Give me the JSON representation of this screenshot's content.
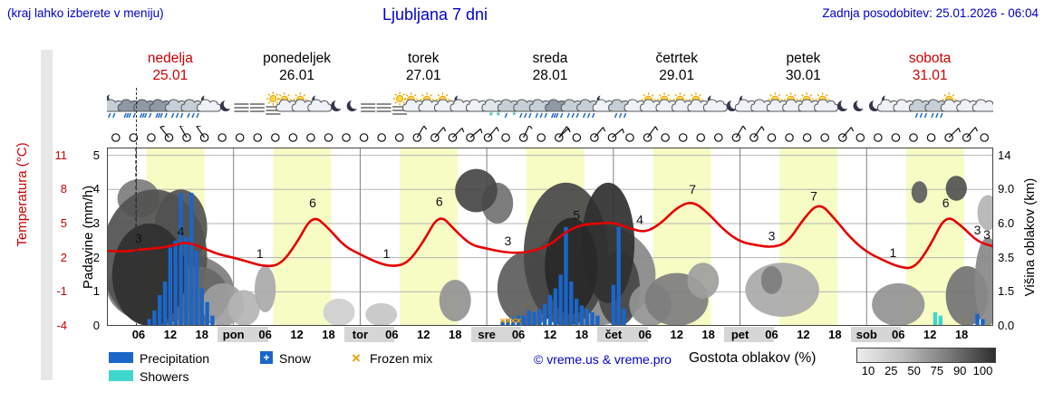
{
  "header": {
    "hint": "(kraj lahko izberete v meniju)",
    "title": "Ljubljana 7 dni",
    "updated": "Zadnja posodobitev: 25.01.2026 - 06:04"
  },
  "days": [
    {
      "name": "nedelja",
      "date": "25.01",
      "weekend": true
    },
    {
      "name": "ponedeljek",
      "date": "26.01",
      "weekend": false
    },
    {
      "name": "torek",
      "date": "27.01",
      "weekend": false
    },
    {
      "name": "sreda",
      "date": "28.01",
      "weekend": false
    },
    {
      "name": "četrtek",
      "date": "29.01",
      "weekend": false
    },
    {
      "name": "petek",
      "date": "30.01",
      "weekend": false
    },
    {
      "name": "sobota",
      "date": "31.01",
      "weekend": true
    }
  ],
  "axes": {
    "temp_label": "Temperatura (°C)",
    "temp_ticks": [
      "11",
      "8",
      "5",
      "2",
      "-1",
      "-4"
    ],
    "precip_label": "Padavine (mm/h)",
    "precip_ticks": [
      "5",
      "4",
      "3",
      "2",
      "1",
      "0"
    ],
    "cloud_label": "Višina oblakov (km)",
    "cloud_ticks": [
      "14",
      "9.0",
      "6.0",
      "3.5",
      "1.5",
      "0.0"
    ]
  },
  "legend": {
    "precipitation": "Precipitation",
    "snow": "Snow",
    "frozen_mix": "Frozen mix",
    "showers": "Showers",
    "copyright": "© vreme.us & vreme.pro",
    "cloud_density": "Gostota oblakov (%)",
    "cloud_scale": [
      "10",
      "25",
      "50",
      "75",
      "90",
      "100"
    ]
  },
  "colors": {
    "accent_blue": "#0000cc",
    "accent_red": "#cc0000",
    "temp_curve": "#e60000",
    "precip_bar": "#1a66c9",
    "showers_bar": "#3fd6ce",
    "frozen_mix": "#f0a000",
    "day_band": "#f7fcc4"
  },
  "chart_data": {
    "type": "meteogram",
    "hours": 168,
    "now_line_hour": 5.5,
    "daylight": [
      7.5,
      18.5
    ],
    "temperature": {
      "unit": "°C",
      "step_hours": 3,
      "values": [
        2.6,
        2.5,
        2.7,
        2.8,
        3.0,
        3.4,
        2.9,
        2.3,
        2.0,
        1.6,
        1.2,
        1.4,
        3.3,
        5.8,
        4.6,
        3.0,
        2.3,
        1.6,
        1.2,
        1.5,
        3.4,
        5.9,
        4.4,
        3.1,
        2.8,
        2.5,
        2.4,
        2.6,
        3.1,
        4.3,
        4.9,
        5.0,
        5.1,
        4.6,
        4.2,
        5.0,
        6.4,
        7.0,
        5.9,
        4.4,
        3.4,
        3.1,
        2.9,
        3.3,
        5.4,
        6.9,
        5.4,
        3.7,
        2.5,
        1.8,
        1.2,
        1.0,
        3.0,
        5.8,
        4.8,
        3.4,
        3.0
      ],
      "point_labels": [
        [
          6,
          3
        ],
        [
          14,
          4
        ],
        [
          29,
          1
        ],
        [
          39,
          6
        ],
        [
          53,
          1
        ],
        [
          63,
          6
        ],
        [
          76,
          3
        ],
        [
          89,
          5
        ],
        [
          101,
          4
        ],
        [
          111,
          7
        ],
        [
          126,
          3
        ],
        [
          134,
          7
        ],
        [
          149,
          1
        ],
        [
          159,
          6
        ],
        [
          165,
          3
        ],
        [
          168,
          3
        ]
      ]
    },
    "precipitation": {
      "unit": "mm/h",
      "bars": [
        [
          8,
          0.2
        ],
        [
          9,
          0.45
        ],
        [
          10,
          0.9
        ],
        [
          11,
          1.3
        ],
        [
          12,
          2.3
        ],
        [
          13,
          2.5
        ],
        [
          14,
          3.9
        ],
        [
          15,
          2.6
        ],
        [
          16,
          3.9
        ],
        [
          17,
          2.2
        ],
        [
          18,
          1.1
        ],
        [
          19,
          0.7
        ],
        [
          20,
          0.3
        ],
        [
          75,
          0.15
        ],
        [
          76,
          0.2
        ],
        [
          77,
          0.25
        ],
        [
          78,
          0.3
        ],
        [
          79,
          0.3
        ],
        [
          80,
          0.45
        ],
        [
          81,
          0.4
        ],
        [
          82,
          0.5
        ],
        [
          83,
          0.65
        ],
        [
          84,
          0.9
        ],
        [
          85,
          1.1
        ],
        [
          86,
          1.5
        ],
        [
          87,
          2.9
        ],
        [
          88,
          1.3
        ],
        [
          89,
          0.8
        ],
        [
          90,
          0.6
        ],
        [
          91,
          0.5
        ],
        [
          92,
          0.4
        ],
        [
          93,
          0.3
        ],
        [
          96,
          1.2
        ],
        [
          97,
          2.9
        ],
        [
          98,
          0.5
        ],
        [
          165,
          0.35
        ],
        [
          166,
          0.2
        ]
      ],
      "shower_bars": [
        [
          157,
          0.4
        ],
        [
          158,
          0.3
        ]
      ]
    },
    "frozen_mix_hours": [
      75,
      76,
      77,
      78
    ],
    "clouds": {
      "unit": "km",
      "scale_km": [
        0,
        1.5,
        3.5,
        6,
        9,
        14
      ],
      "blobs": [
        [
          12,
          2,
          12,
          2,
          55
        ],
        [
          6,
          8.5,
          4,
          2,
          55
        ],
        [
          9,
          4.5,
          10,
          4.5,
          75
        ],
        [
          14,
          6,
          5,
          3,
          75
        ],
        [
          17,
          1.5,
          6,
          1.5,
          65
        ],
        [
          8,
          3,
          7,
          3,
          90
        ],
        [
          22,
          1,
          4,
          1,
          40
        ],
        [
          26,
          0.8,
          3,
          0.8,
          30
        ],
        [
          30,
          1.8,
          2,
          1.2,
          35
        ],
        [
          44,
          0.6,
          3,
          0.6,
          18
        ],
        [
          52,
          0.5,
          3,
          0.5,
          22
        ],
        [
          66,
          1.2,
          3,
          1,
          45
        ],
        [
          74,
          8,
          3,
          2,
          60
        ],
        [
          70,
          9.5,
          4,
          2.5,
          80
        ],
        [
          92,
          3,
          12,
          3,
          50
        ],
        [
          80,
          2,
          6,
          2,
          70
        ],
        [
          87,
          5,
          8,
          5,
          80
        ],
        [
          97,
          2,
          4,
          2,
          80
        ],
        [
          95,
          5.5,
          5,
          4.5,
          90
        ],
        [
          88,
          3.5,
          5,
          3,
          95
        ],
        [
          103,
          1,
          4,
          1,
          45
        ],
        [
          108,
          1.3,
          6,
          1.3,
          55
        ],
        [
          113,
          2.2,
          3,
          1,
          40
        ],
        [
          128,
          1.8,
          7,
          1.4,
          35
        ],
        [
          126,
          2.2,
          2,
          0.8,
          55
        ],
        [
          150,
          1,
          5,
          1,
          45
        ],
        [
          154,
          9,
          1.5,
          1.2,
          70
        ],
        [
          161,
          9.5,
          2,
          1.5,
          75
        ],
        [
          163,
          1.5,
          4,
          1.5,
          60
        ],
        [
          167,
          2.5,
          2.5,
          2.5,
          50
        ],
        [
          167,
          7,
          2,
          1.5,
          30
        ]
      ]
    },
    "wind": {
      "circle_count": 50,
      "barbs": [
        [
          11,
          130
        ],
        [
          14,
          120
        ],
        [
          17,
          125
        ],
        [
          59,
          60
        ],
        [
          63,
          50
        ],
        [
          66,
          45
        ],
        [
          70,
          40
        ],
        [
          73,
          50
        ],
        [
          80,
          65
        ],
        [
          84,
          55
        ],
        [
          87,
          45
        ],
        [
          91,
          50
        ],
        [
          97,
          40
        ],
        [
          103,
          55
        ],
        [
          118,
          60
        ],
        [
          121,
          55
        ],
        [
          140,
          50
        ],
        [
          159,
          45
        ],
        [
          163,
          50
        ]
      ]
    },
    "sky_icons": [
      [
        1.5,
        "moon-rain"
      ],
      [
        4.5,
        "heavy-rain"
      ],
      [
        7.5,
        "heavy-rain"
      ],
      [
        10.5,
        "heavy-rain"
      ],
      [
        13.5,
        "rain"
      ],
      [
        16.5,
        "rain"
      ],
      [
        19.5,
        "moon-cloud"
      ],
      [
        22.5,
        "moon"
      ],
      [
        25.5,
        "fog"
      ],
      [
        28.5,
        "fog"
      ],
      [
        31.5,
        "sun-fog"
      ],
      [
        34.5,
        "sun-cloud"
      ],
      [
        37.5,
        "sun-cloud"
      ],
      [
        40.5,
        "moon-cloud"
      ],
      [
        43.5,
        "moon"
      ],
      [
        46.5,
        "moon"
      ],
      [
        49.5,
        "fog"
      ],
      [
        52.5,
        "fog"
      ],
      [
        55.5,
        "sun-fog"
      ],
      [
        58.5,
        "sun-cloud"
      ],
      [
        61.5,
        "sun-cloud"
      ],
      [
        64.5,
        "sun-cloud"
      ],
      [
        67.5,
        "moon-cloud"
      ],
      [
        70.5,
        "cloud"
      ],
      [
        73.5,
        "snow"
      ],
      [
        76.5,
        "sleet"
      ],
      [
        79.5,
        "rain"
      ],
      [
        82.5,
        "rain"
      ],
      [
        85.5,
        "heavy-rain"
      ],
      [
        88.5,
        "rain"
      ],
      [
        91.5,
        "rain"
      ],
      [
        94.5,
        "moon-cloud"
      ],
      [
        97.5,
        "rain"
      ],
      [
        100.5,
        "cloud"
      ],
      [
        103.5,
        "sun-cloud"
      ],
      [
        106.5,
        "sun-cloud"
      ],
      [
        109.5,
        "sun-cloud"
      ],
      [
        112.5,
        "sun-cloud"
      ],
      [
        115.5,
        "moon-cloud"
      ],
      [
        118.5,
        "moon"
      ],
      [
        121.5,
        "moon-cloud"
      ],
      [
        124.5,
        "cloud"
      ],
      [
        127.5,
        "sun-cloud"
      ],
      [
        130.5,
        "sun-cloud"
      ],
      [
        133.5,
        "sun-cloud"
      ],
      [
        136.5,
        "sun-cloud"
      ],
      [
        139.5,
        "moon"
      ],
      [
        142.5,
        "moon"
      ],
      [
        145.5,
        "moon"
      ],
      [
        148.5,
        "moon-cloud"
      ],
      [
        151.5,
        "cloud"
      ],
      [
        154.5,
        "rain"
      ],
      [
        157.5,
        "rain"
      ],
      [
        160.5,
        "sun-cloud"
      ],
      [
        163.5,
        "cloud"
      ],
      [
        166.5,
        "cloud"
      ]
    ],
    "x_ticks": [
      [
        6,
        "06"
      ],
      [
        12,
        "12"
      ],
      [
        18,
        "18"
      ],
      [
        24,
        "pon"
      ],
      [
        30,
        "06"
      ],
      [
        36,
        "12"
      ],
      [
        42,
        "18"
      ],
      [
        48,
        "tor"
      ],
      [
        54,
        "06"
      ],
      [
        60,
        "12"
      ],
      [
        66,
        "18"
      ],
      [
        72,
        "sre"
      ],
      [
        78,
        "06"
      ],
      [
        84,
        "12"
      ],
      [
        90,
        "18"
      ],
      [
        96,
        "čet"
      ],
      [
        102,
        "06"
      ],
      [
        108,
        "12"
      ],
      [
        114,
        "18"
      ],
      [
        120,
        "pet"
      ],
      [
        126,
        "06"
      ],
      [
        132,
        "12"
      ],
      [
        138,
        "18"
      ],
      [
        144,
        "sob"
      ],
      [
        150,
        "06"
      ],
      [
        156,
        "12"
      ],
      [
        162,
        "18"
      ]
    ],
    "night_axis_bands": [
      [
        21,
        30.5
      ],
      [
        45,
        54.5
      ],
      [
        69,
        78.5
      ],
      [
        93,
        102.5
      ],
      [
        117,
        126.5
      ],
      [
        141,
        150.5
      ]
    ]
  }
}
